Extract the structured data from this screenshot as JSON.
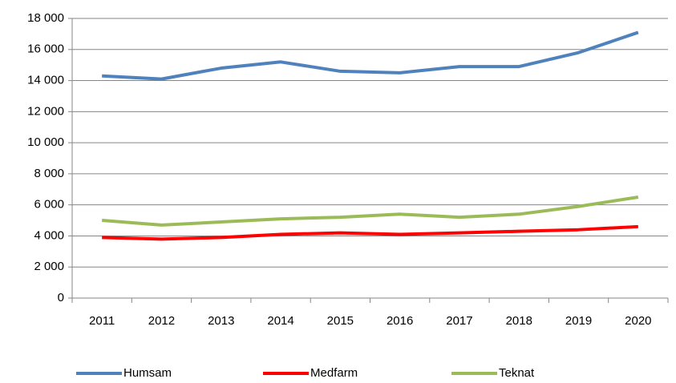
{
  "chart_data": {
    "type": "line",
    "categories": [
      "2011",
      "2012",
      "2013",
      "2014",
      "2015",
      "2016",
      "2017",
      "2018",
      "2019",
      "2020"
    ],
    "series": [
      {
        "name": "Humsam",
        "color": "#4f81bd",
        "values": [
          14300,
          14100,
          14800,
          15200,
          14600,
          14500,
          14900,
          14900,
          15800,
          17100
        ]
      },
      {
        "name": "Medfarm",
        "color": "#ff0000",
        "values": [
          3900,
          3800,
          3900,
          4100,
          4200,
          4100,
          4200,
          4300,
          4400,
          4600
        ]
      },
      {
        "name": "Teknat",
        "color": "#9bbb59",
        "values": [
          5000,
          4700,
          4900,
          5100,
          5200,
          5400,
          5200,
          5400,
          5900,
          6500
        ]
      }
    ],
    "ylim": [
      0,
      18000
    ],
    "yticks": [
      0,
      {
        "value": 2000,
        "label": "2 000"
      },
      {
        "value": 4000,
        "label": "4 000"
      },
      {
        "value": 6000,
        "label": "6 000"
      },
      {
        "value": 8000,
        "label": "8 000"
      },
      {
        "value": 10000,
        "label": "10 000"
      },
      {
        "value": 12000,
        "label": "12 000"
      },
      {
        "value": 14000,
        "label": "14 000"
      },
      {
        "value": 16000,
        "label": "16 000"
      },
      {
        "value": 18000,
        "label": "18 000"
      }
    ],
    "grid": true,
    "legend": "bottom"
  }
}
